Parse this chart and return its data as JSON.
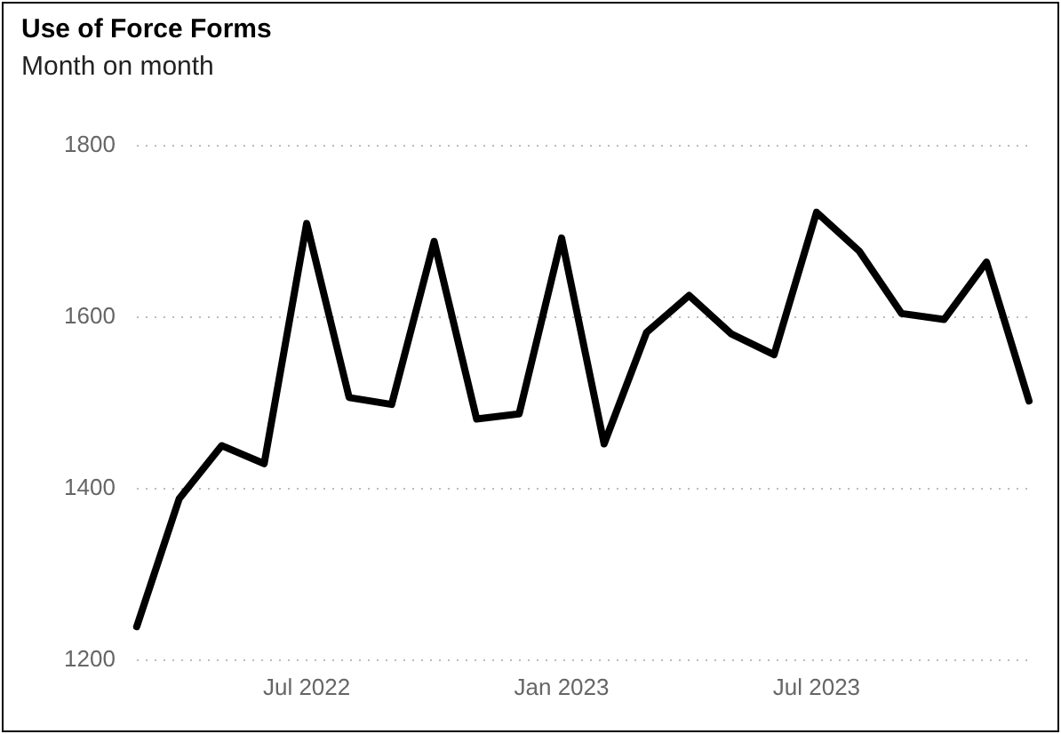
{
  "chart_data": {
    "type": "line",
    "title": "Use of Force Forms",
    "subtitle": "Month on month",
    "x": [
      "2022-03",
      "2022-04",
      "2022-05",
      "2022-06",
      "2022-07",
      "2022-08",
      "2022-09",
      "2022-10",
      "2022-11",
      "2022-12",
      "2023-01",
      "2023-02",
      "2023-03",
      "2023-04",
      "2023-05",
      "2023-06",
      "2023-07",
      "2023-08",
      "2023-09",
      "2023-10",
      "2023-11",
      "2023-12"
    ],
    "series": [
      {
        "color": "#000000",
        "values": [
          1239,
          1388,
          1450,
          1429,
          1709,
          1506,
          1498,
          1688,
          1481,
          1487,
          1692,
          1452,
          1582,
          1625,
          1580,
          1556,
          1722,
          1677,
          1604,
          1597,
          1664,
          1502
        ]
      }
    ],
    "xlim": [
      "2022-03",
      "2023-12"
    ],
    "xticks": [
      {
        "value": "2022-07",
        "label": "Jul 2022"
      },
      {
        "value": "2023-01",
        "label": "Jan 2023"
      },
      {
        "value": "2023-07",
        "label": "Jul 2023"
      }
    ],
    "ylim": [
      1200,
      1800
    ],
    "yticks": [
      1200,
      1400,
      1600,
      1800
    ],
    "grid": "y",
    "legend": false,
    "marker": "none",
    "line_style": "solid"
  }
}
